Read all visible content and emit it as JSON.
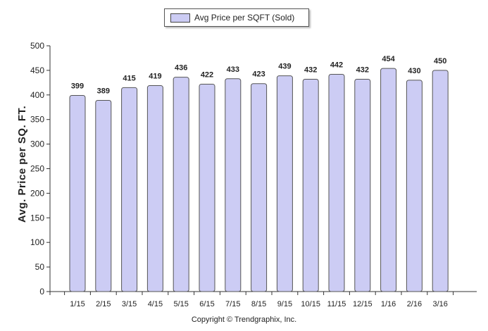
{
  "chart_data": {
    "type": "bar",
    "categories": [
      "1/15",
      "2/15",
      "3/15",
      "4/15",
      "5/15",
      "6/15",
      "7/15",
      "8/15",
      "9/15",
      "10/15",
      "11/15",
      "12/15",
      "1/16",
      "2/16",
      "3/16"
    ],
    "series": [
      {
        "name": "Avg Price per SQFT (Sold)",
        "values": [
          399,
          389,
          415,
          419,
          436,
          422,
          433,
          423,
          439,
          432,
          442,
          432,
          454,
          430,
          450
        ]
      }
    ],
    "ylabel": "Avg. Price per SQ. FT.",
    "xlabel": "",
    "ylim": [
      0,
      500
    ],
    "yticks": [
      0,
      50,
      100,
      150,
      200,
      250,
      300,
      350,
      400,
      450,
      500
    ],
    "legend_position": "top-center",
    "grid": false,
    "bar_color": "#ccccf4"
  },
  "footer": {
    "copyright": "Copyright © Trendgraphix, Inc."
  }
}
